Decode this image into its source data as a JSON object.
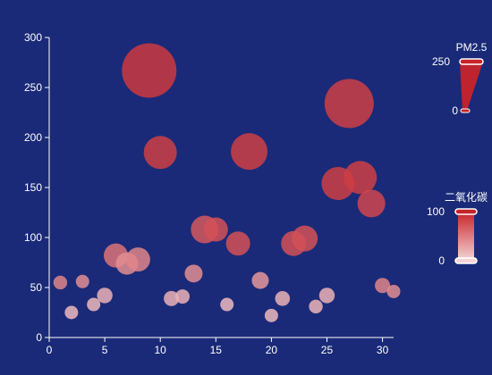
{
  "background": "#1a2a78",
  "chart_data": {
    "type": "scatter",
    "x_ticks": [
      "0",
      "5",
      "10",
      "15",
      "20",
      "25",
      "30"
    ],
    "y_ticks": [
      "0",
      "50",
      "100",
      "150",
      "200",
      "250",
      "300"
    ],
    "xlim": [
      0,
      31
    ],
    "ylim": [
      0,
      300
    ],
    "grid": false,
    "points": [
      {
        "x": 1,
        "y": 55,
        "pm25": 22,
        "co2": 45
      },
      {
        "x": 2,
        "y": 25,
        "pm25": 20,
        "co2": 15
      },
      {
        "x": 3,
        "y": 56,
        "pm25": 20,
        "co2": 40
      },
      {
        "x": 4,
        "y": 33,
        "pm25": 20,
        "co2": 15
      },
      {
        "x": 5,
        "y": 42,
        "pm25": 32,
        "co2": 20
      },
      {
        "x": 6,
        "y": 82,
        "pm25": 80,
        "co2": 55
      },
      {
        "x": 7,
        "y": 74,
        "pm25": 70,
        "co2": 40
      },
      {
        "x": 8,
        "y": 78,
        "pm25": 80,
        "co2": 45
      },
      {
        "x": 9,
        "y": 267,
        "pm25": 250,
        "co2": 88
      },
      {
        "x": 10,
        "y": 185,
        "pm25": 130,
        "co2": 85
      },
      {
        "x": 11,
        "y": 39,
        "pm25": 30,
        "co2": 20
      },
      {
        "x": 12,
        "y": 41,
        "pm25": 25,
        "co2": 20
      },
      {
        "x": 13,
        "y": 64,
        "pm25": 45,
        "co2": 40
      },
      {
        "x": 14,
        "y": 108,
        "pm25": 100,
        "co2": 70
      },
      {
        "x": 15,
        "y": 108,
        "pm25": 80,
        "co2": 75
      },
      {
        "x": 16,
        "y": 33,
        "pm25": 20,
        "co2": 15
      },
      {
        "x": 17,
        "y": 94,
        "pm25": 80,
        "co2": 75
      },
      {
        "x": 18,
        "y": 186,
        "pm25": 150,
        "co2": 85
      },
      {
        "x": 19,
        "y": 57,
        "pm25": 40,
        "co2": 35
      },
      {
        "x": 20,
        "y": 22,
        "pm25": 20,
        "co2": 15
      },
      {
        "x": 21,
        "y": 39,
        "pm25": 28,
        "co2": 20
      },
      {
        "x": 22,
        "y": 94,
        "pm25": 85,
        "co2": 75
      },
      {
        "x": 23,
        "y": 99,
        "pm25": 90,
        "co2": 75
      },
      {
        "x": 24,
        "y": 31,
        "pm25": 22,
        "co2": 18
      },
      {
        "x": 25,
        "y": 42,
        "pm25": 32,
        "co2": 20
      },
      {
        "x": 26,
        "y": 154,
        "pm25": 130,
        "co2": 85
      },
      {
        "x": 27,
        "y": 234,
        "pm25": 220,
        "co2": 85
      },
      {
        "x": 28,
        "y": 160,
        "pm25": 130,
        "co2": 85
      },
      {
        "x": 29,
        "y": 134,
        "pm25": 100,
        "co2": 80
      },
      {
        "x": 30,
        "y": 52,
        "pm25": 30,
        "co2": 45
      },
      {
        "x": 31,
        "y": 46,
        "pm25": 20,
        "co2": 40
      }
    ],
    "visual_maps": [
      {
        "title": "PM2.5",
        "max_label": "250",
        "min_label": "0",
        "min": 0,
        "max": 250,
        "maps_to": "size"
      },
      {
        "title": "二氧化碳",
        "max_label": "100",
        "min_label": "0",
        "min": 0,
        "max": 100,
        "maps_to": "color"
      }
    ],
    "colors": {
      "low": "#f5d5d8",
      "high": "#c7232a",
      "axis": "#ffffff"
    }
  }
}
